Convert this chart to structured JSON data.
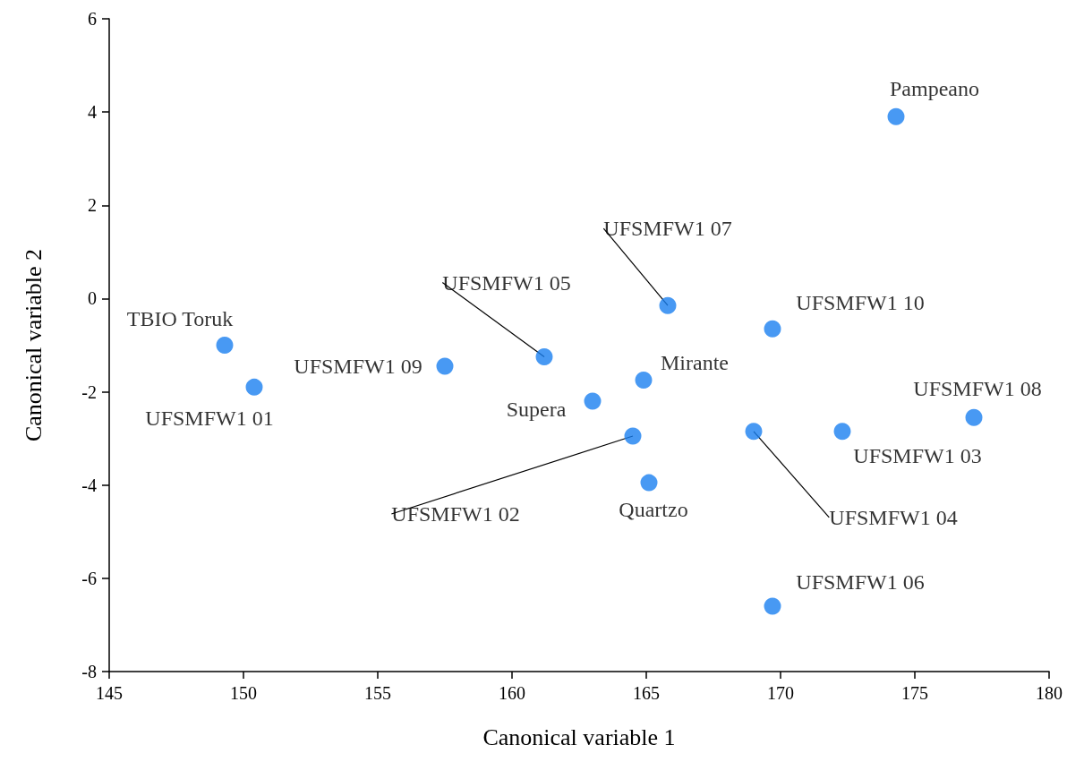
{
  "chart_data": {
    "type": "scatter",
    "xlabel": "Canonical variable 1",
    "ylabel": "Canonical variable 2",
    "x": [
      149.3,
      150.4,
      157.5,
      161.2,
      163.0,
      164.9,
      165.8,
      164.5,
      165.1,
      169.0,
      169.7,
      172.3,
      177.2,
      174.3,
      169.7
    ],
    "values": [
      -1.0,
      -1.9,
      -1.45,
      -1.25,
      -2.2,
      -1.75,
      -0.15,
      -2.95,
      -3.95,
      -2.85,
      -0.65,
      -2.85,
      -2.55,
      3.9,
      -6.6
    ],
    "color": "#1a7ff0",
    "marker": "circle",
    "xlim": [
      145,
      180
    ],
    "xticks": [
      145,
      150,
      155,
      160,
      165,
      170,
      175,
      180
    ],
    "ylim": [
      -8,
      6
    ],
    "yticks": [
      -8,
      -6,
      -4,
      -2,
      0,
      2,
      4,
      6
    ],
    "grid": false,
    "annotations": [
      {
        "text": "TBIO Toruk",
        "x": 149.3,
        "y": -1.0
      },
      {
        "text": "UFSMFW1 01",
        "x": 150.4,
        "y": -1.9
      },
      {
        "text": "UFSMFW1 09",
        "x": 157.5,
        "y": -1.45
      },
      {
        "text": "UFSMFW1 05",
        "x": 161.2,
        "y": -1.25
      },
      {
        "text": "Supera",
        "x": 163.0,
        "y": -2.2
      },
      {
        "text": "Mirante",
        "x": 164.9,
        "y": -1.75
      },
      {
        "text": "UFSMFW1 07",
        "x": 165.8,
        "y": -0.15
      },
      {
        "text": "UFSMFW1 02",
        "x": 164.5,
        "y": -2.95
      },
      {
        "text": "Quartzo",
        "x": 165.1,
        "y": -3.95
      },
      {
        "text": "UFSMFW1 04",
        "x": 169.0,
        "y": -2.85
      },
      {
        "text": "UFSMFW1 10",
        "x": 169.7,
        "y": -0.65
      },
      {
        "text": "UFSMFW1 03",
        "x": 172.3,
        "y": -2.85
      },
      {
        "text": "UFSMFW1 08",
        "x": 177.2,
        "y": -2.55
      },
      {
        "text": "Pampeano",
        "x": 174.3,
        "y": 3.9
      },
      {
        "text": "UFSMFW1 06",
        "x": 169.7,
        "y": -6.6
      }
    ]
  }
}
